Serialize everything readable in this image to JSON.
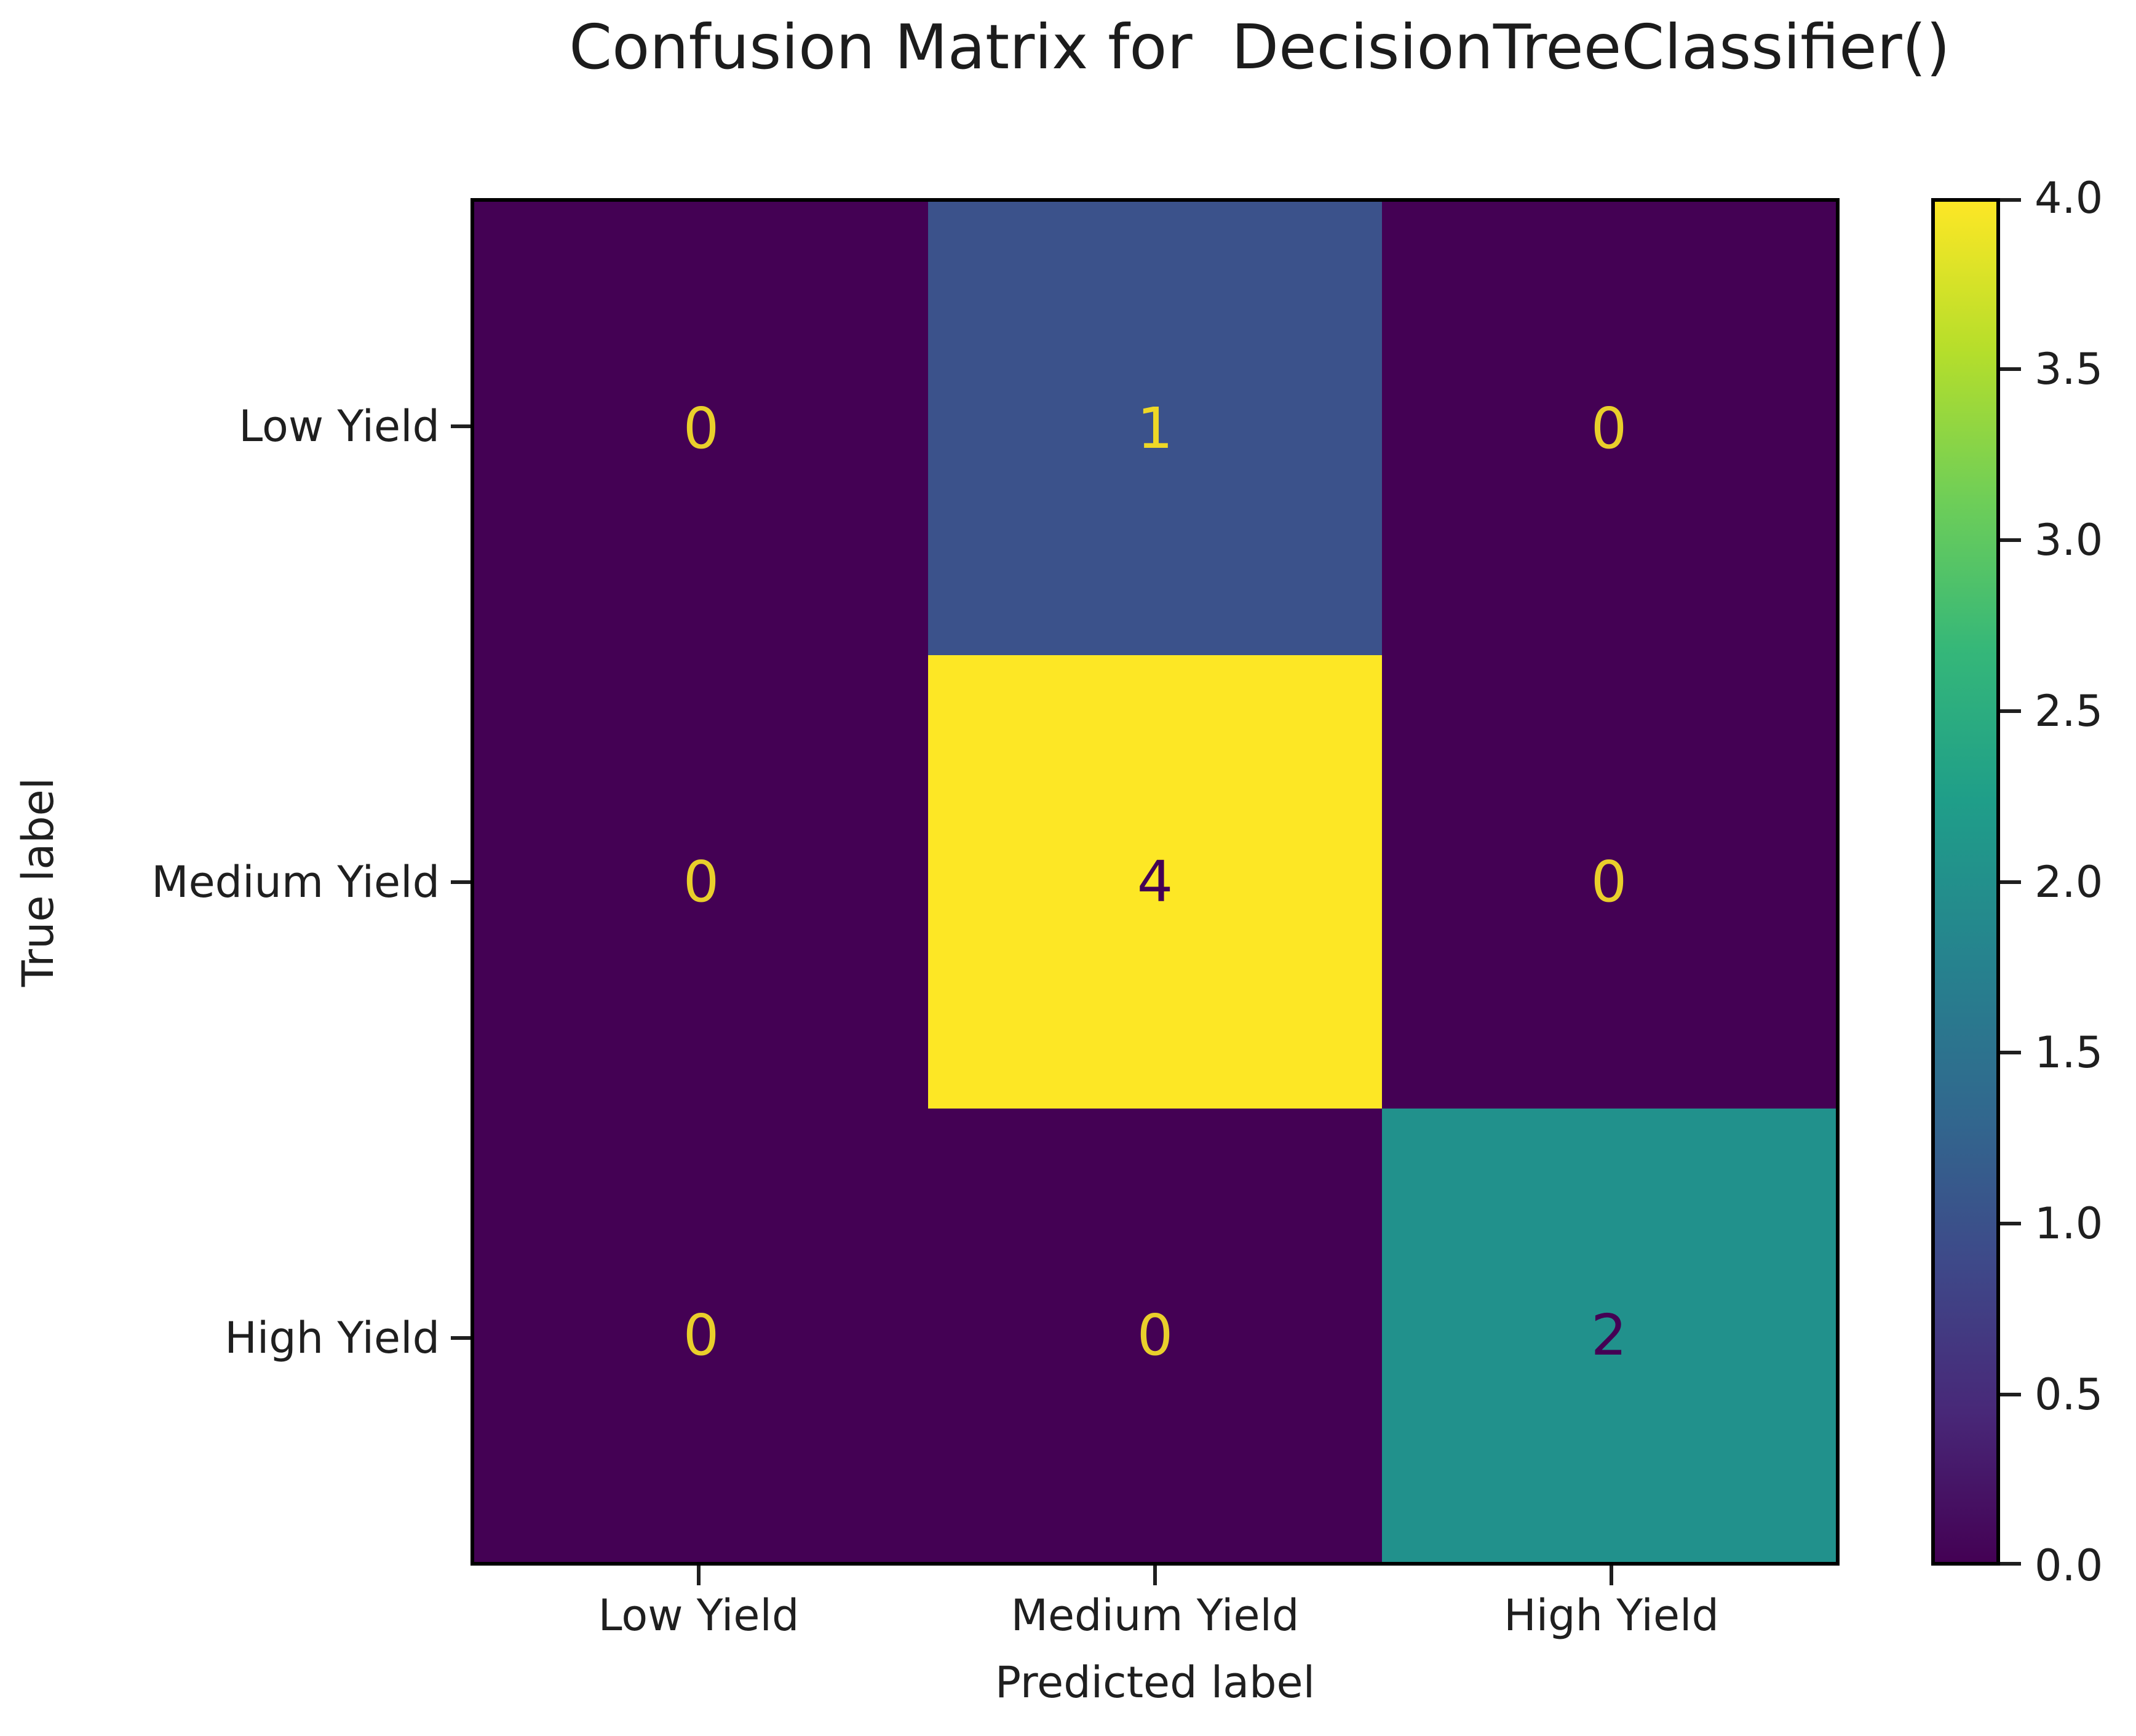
{
  "chart_data": {
    "type": "heatmap",
    "title": "Confusion Matrix for  DecisionTreeClassifier()",
    "xlabel": "Predicted label",
    "ylabel": "True label",
    "x_categories": [
      "Low Yield",
      "Medium Yield",
      "High Yield"
    ],
    "y_categories": [
      "Low Yield",
      "Medium Yield",
      "High Yield"
    ],
    "matrix": [
      [
        0,
        1,
        0
      ],
      [
        0,
        4,
        0
      ],
      [
        0,
        0,
        2
      ]
    ],
    "colormap": "viridis",
    "vmin": 0.0,
    "vmax": 4.0,
    "colorbar_ticks": [
      "4.0",
      "3.5",
      "3.0",
      "2.5",
      "2.0",
      "1.5",
      "1.0",
      "0.5",
      "0.0"
    ],
    "legend_position": "right-colorbar",
    "grid": false,
    "cell_colors": [
      [
        "#440154",
        "#3b528b",
        "#440154"
      ],
      [
        "#440154",
        "#fde725",
        "#440154"
      ],
      [
        "#440154",
        "#440154",
        "#21918c"
      ]
    ],
    "cell_text_colors": [
      [
        "#e9cf2b",
        "#eed826",
        "#e9cf2b"
      ],
      [
        "#e9cf2b",
        "#440154",
        "#e9cf2b"
      ],
      [
        "#e9cf2b",
        "#e9cf2b",
        "#440154"
      ]
    ],
    "viridis_stops": [
      {
        "color": "#440154",
        "pos": 0
      },
      {
        "color": "#482878",
        "pos": 11
      },
      {
        "color": "#3e4989",
        "pos": 22
      },
      {
        "color": "#31688e",
        "pos": 33
      },
      {
        "color": "#26828e",
        "pos": 44
      },
      {
        "color": "#1f9e89",
        "pos": 56
      },
      {
        "color": "#35b779",
        "pos": 67
      },
      {
        "color": "#6ece58",
        "pos": 78
      },
      {
        "color": "#b5de2b",
        "pos": 89
      },
      {
        "color": "#fde725",
        "pos": 100
      }
    ]
  }
}
